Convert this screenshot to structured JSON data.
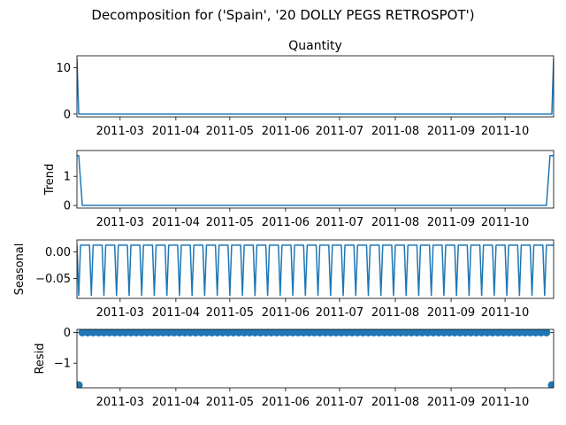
{
  "chart_data": {
    "type": "line",
    "suptitle": "Decomposition for ('Spain', '20 DOLLY PEGS RETROSPOT')",
    "x_range": [
      "2011-02-05",
      "2011-10-28"
    ],
    "x_ticks": [
      {
        "date": "2011-03-01",
        "label": "2011-03"
      },
      {
        "date": "2011-04-01",
        "label": "2011-04"
      },
      {
        "date": "2011-05-01",
        "label": "2011-05"
      },
      {
        "date": "2011-06-01",
        "label": "2011-06"
      },
      {
        "date": "2011-07-01",
        "label": "2011-07"
      },
      {
        "date": "2011-08-01",
        "label": "2011-08"
      },
      {
        "date": "2011-09-01",
        "label": "2011-09"
      },
      {
        "date": "2011-10-01",
        "label": "2011-10"
      }
    ],
    "series_color": "#1f77b4",
    "panels": [
      {
        "id": "observed",
        "title": "Quantity",
        "ylabel": "",
        "style": "line",
        "ylim": [
          -0.6,
          12.6
        ],
        "y_ticks": [
          {
            "value": 0,
            "label": "0"
          },
          {
            "value": 10,
            "label": "10"
          }
        ],
        "points": [
          {
            "date": "2011-02-05",
            "value": 12
          },
          {
            "date": "2011-02-06",
            "value": 0
          },
          {
            "date": "2011-10-27",
            "value": 0
          },
          {
            "date": "2011-10-28",
            "value": 12
          }
        ]
      },
      {
        "id": "trend",
        "title": "",
        "ylabel": "Trend",
        "style": "line",
        "ylim": [
          -0.09,
          1.89
        ],
        "y_ticks": [
          {
            "value": 0,
            "label": "0"
          },
          {
            "value": 1,
            "label": "1"
          }
        ],
        "points": [
          {
            "date": "2011-02-05",
            "value": 1.714
          },
          {
            "date": "2011-02-06",
            "value": 1.714
          },
          {
            "date": "2011-02-08",
            "value": 0
          },
          {
            "date": "2011-10-24",
            "value": 0
          },
          {
            "date": "2011-10-26",
            "value": 1.714
          },
          {
            "date": "2011-10-28",
            "value": 1.714
          }
        ]
      },
      {
        "id": "seasonal",
        "title": "",
        "ylabel": "Seasonal",
        "style": "weekly",
        "ylim": [
          -0.087,
          0.022
        ],
        "y_ticks": [
          {
            "value": 0,
            "label": "0.00"
          },
          {
            "value": -0.05,
            "label": "−0.05"
          }
        ],
        "high": 0.0122,
        "low": -0.0816,
        "period_days": 7,
        "first_low": "2011-02-06",
        "low_width_days": 1
      },
      {
        "id": "resid",
        "title": "",
        "ylabel": "Resid",
        "style": "scatter",
        "ylim": [
          -1.8,
          0.1
        ],
        "y_ticks": [
          {
            "value": 0,
            "label": "0"
          },
          {
            "value": -1,
            "label": "−1"
          }
        ],
        "dense": {
          "start": "2011-02-08",
          "end": "2011-10-25",
          "value": 0,
          "spacing_days": 3
        },
        "points": [
          {
            "date": "2011-02-05",
            "value": -1.714
          },
          {
            "date": "2011-02-06",
            "value": -1.714
          },
          {
            "date": "2011-10-27",
            "value": -1.714
          },
          {
            "date": "2011-10-28",
            "value": -1.714
          }
        ]
      }
    ]
  }
}
